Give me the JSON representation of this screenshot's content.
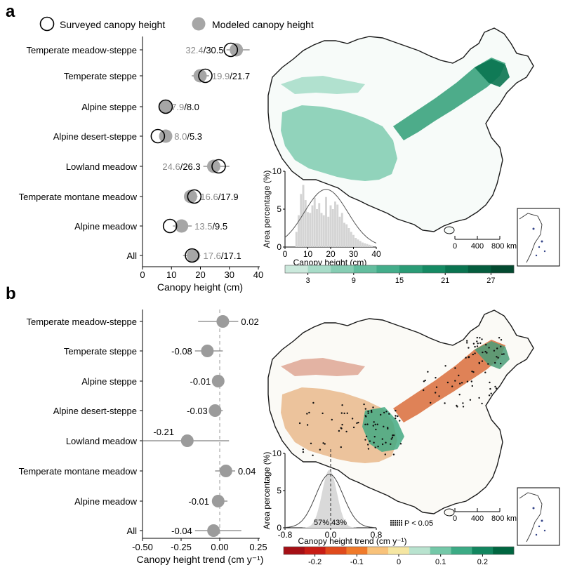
{
  "figure": {
    "panel_a_letter": "a",
    "panel_b_letter": "b",
    "legend": {
      "surveyed": "Surveyed canopy height",
      "modeled": "Modeled canopy height"
    }
  },
  "colors": {
    "modeled_fill": "#a6a6a6",
    "surveyed_stroke": "#000000",
    "trend_point": "#9b9b9b",
    "hist_bar": "#d4d4d4",
    "map_outline": "#1a1a1a"
  },
  "chart_data": [
    {
      "id": "panel-a-dotplot",
      "type": "scatter",
      "xlabel": "Canopy height (cm)",
      "xlim": [
        0,
        40
      ],
      "xticks": [
        0,
        10,
        20,
        30,
        40
      ],
      "categories": [
        "Temperate meadow-steppe",
        "Temperate steppe",
        "Alpine steppe",
        "Alpine desert-steppe",
        "Lowland meadow",
        "Temperate montane meadow",
        "Alpine meadow",
        "All"
      ],
      "series": [
        {
          "name": "Surveyed canopy height",
          "values": [
            30.5,
            21.7,
            8.0,
            5.3,
            26.3,
            17.9,
            9.5,
            17.1
          ]
        },
        {
          "name": "Modeled canopy height",
          "values": [
            32.4,
            19.9,
            7.9,
            8.0,
            24.6,
            16.6,
            13.5,
            17.6
          ]
        }
      ],
      "modeled_error_range": [
        [
          29,
          37
        ],
        [
          17,
          23
        ],
        [
          7,
          9
        ],
        [
          6,
          10
        ],
        [
          21,
          30
        ],
        [
          14.5,
          19
        ],
        [
          10.5,
          17
        ],
        [
          14,
          20
        ]
      ],
      "labels_modeled": [
        "32.4",
        "19.9",
        "7.9",
        "8.0",
        "24.6",
        "16.6",
        "13.5",
        "17.6"
      ],
      "labels_surveyed": [
        "30.5",
        "21.7",
        "8.0",
        "5.3",
        "26.3",
        "17.9",
        "9.5",
        "17.1"
      ],
      "label_sep": "/"
    },
    {
      "id": "panel-b-dotplot",
      "type": "scatter",
      "xlabel": "Canopy height trend (cm y⁻¹)",
      "xlim": [
        -0.5,
        0.25
      ],
      "xticks": [
        -0.5,
        -0.25,
        0.0,
        0.25
      ],
      "xticklabels": [
        "-0.50",
        "-0.25",
        "0.00",
        "0.25"
      ],
      "categories": [
        "Temperate meadow-steppe",
        "Temperate steppe",
        "Alpine steppe",
        "Alpine desert-steppe",
        "Lowland meadow",
        "Temperate montane meadow",
        "Alpine meadow",
        "All"
      ],
      "values": [
        0.02,
        -0.08,
        -0.01,
        -0.03,
        -0.21,
        0.04,
        -0.01,
        -0.04
      ],
      "error_range": [
        [
          -0.14,
          0.12
        ],
        [
          -0.16,
          0.02
        ],
        [
          -0.04,
          0.01
        ],
        [
          -0.06,
          0.02
        ],
        [
          -0.5,
          0.06
        ],
        [
          -0.03,
          0.1
        ],
        [
          -0.05,
          0.05
        ],
        [
          -0.16,
          0.14
        ]
      ],
      "labels": [
        "0.02",
        "-0.08",
        "-0.01",
        "-0.03",
        "-0.21",
        "0.04",
        "-0.01",
        "-0.04"
      ]
    },
    {
      "id": "panel-a-inset-histogram",
      "type": "bar",
      "ylabel": "Area percentage (%)",
      "xlabel": "Canopy height (cm)",
      "xlim": [
        0,
        40
      ],
      "ylim": [
        0,
        10
      ],
      "xticks": [
        0,
        10,
        20,
        30,
        40
      ],
      "yticks": [
        0,
        5,
        10
      ],
      "x": [
        5,
        6,
        7,
        8,
        9,
        10,
        11,
        12,
        13,
        14,
        15,
        16,
        17,
        18,
        19,
        20,
        21,
        22,
        23,
        24,
        25,
        26,
        27,
        28,
        29,
        30,
        31,
        32,
        33,
        34,
        35,
        36,
        37,
        38
      ],
      "values": [
        2.0,
        4.2,
        7.0,
        8.2,
        6.2,
        4.6,
        4.5,
        5.5,
        6.5,
        5.0,
        5.8,
        4.5,
        4.2,
        6.6,
        4.0,
        5.5,
        5.0,
        6.0,
        5.6,
        4.0,
        4.5,
        3.2,
        3.0,
        2.5,
        2.0,
        1.6,
        1.2,
        1.0,
        0.8,
        0.6,
        0.5,
        0.4,
        0.3,
        0.2
      ],
      "fit_curve": {
        "mean": 18,
        "sd": 9.5,
        "peak": 7.6
      }
    },
    {
      "id": "panel-b-inset-histogram",
      "type": "area",
      "ylabel": "Area percentage (%)",
      "xlabel": "Canopy height trend (cm y⁻¹)",
      "xlim": [
        -0.8,
        0.8
      ],
      "ylim": [
        0,
        10
      ],
      "xticks": [
        -0.8,
        0.0,
        0.8
      ],
      "xticklabels": [
        "-0.8",
        "0.0",
        "0.8"
      ],
      "yticks": [
        0,
        5,
        10
      ],
      "fit_curve": {
        "mean": -0.02,
        "sd": 0.13,
        "peak": 7.2
      },
      "split_labels": [
        "57%",
        "43%"
      ]
    }
  ],
  "maps": {
    "panel_a": {
      "scalebar_ticks": [
        "0",
        "400",
        "800 km"
      ],
      "colorbar_ticks": [
        "3",
        "9",
        "15",
        "21",
        "27"
      ],
      "colorbar_colors": [
        "#cbe9dc",
        "#a8dcc8",
        "#86cdb3",
        "#63bd9e",
        "#43ad8a",
        "#2a9c76",
        "#158a63",
        "#0a7450",
        "#055d3e",
        "#034a30"
      ]
    },
    "panel_b": {
      "scalebar_ticks": [
        "0",
        "400",
        "800 km"
      ],
      "colorbar_ticks": [
        "-0.2",
        "-0.1",
        "0",
        "0.1",
        "0.2"
      ],
      "colorbar_colors": [
        "#a50f15",
        "#c81d15",
        "#e04a1c",
        "#f07a2a",
        "#f8c27a",
        "#f5e6a2",
        "#b9e3cf",
        "#74c8a8",
        "#3cab85",
        "#12865f",
        "#006640"
      ],
      "significance_label": "P < 0.05"
    }
  }
}
